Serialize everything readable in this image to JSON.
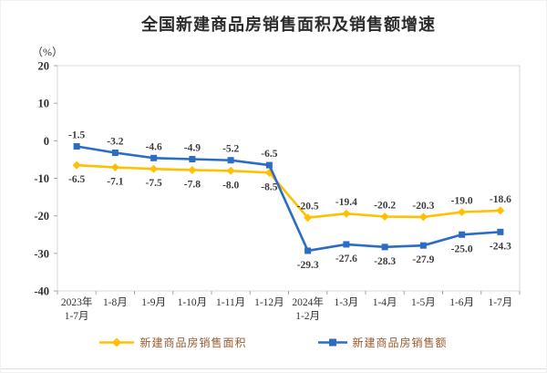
{
  "chart_data": {
    "type": "line",
    "title": "全国新建商品房销售面积及销售额增速",
    "unit_label": "（%）",
    "categories": [
      "2023年\n1-7月",
      "1-8月",
      "1-9月",
      "1-10月",
      "1-11月",
      "1-12月",
      "2024年\n1-2月",
      "1-3月",
      "1-4月",
      "1-5月",
      "1-6月",
      "1-7月"
    ],
    "series": [
      {
        "name": "新建商品房销售面积",
        "color": "#FFC000",
        "marker": "diamond",
        "values": [
          -6.5,
          -7.1,
          -7.5,
          -7.8,
          -8.0,
          -8.5,
          -20.5,
          -19.4,
          -20.2,
          -20.3,
          -19.0,
          -18.6
        ]
      },
      {
        "name": "新建商品房销售额",
        "color": "#2B6CC4",
        "marker": "square",
        "values": [
          -1.5,
          -3.2,
          -4.6,
          -4.9,
          -5.2,
          -6.5,
          -29.3,
          -27.6,
          -28.3,
          -27.9,
          -25.0,
          -24.3
        ]
      }
    ],
    "ylim": [
      -40,
      20
    ],
    "yticks": [
      20,
      10,
      0,
      -10,
      -20,
      -30,
      -40
    ],
    "grid": false,
    "legend_position": "bottom",
    "colors": {
      "plot_border": "#D9D9D9",
      "tick": "#A6A6A6",
      "axis_text": "#303030",
      "data_label": "#3C3C3C",
      "legend_text": "#9A5B2E"
    }
  }
}
